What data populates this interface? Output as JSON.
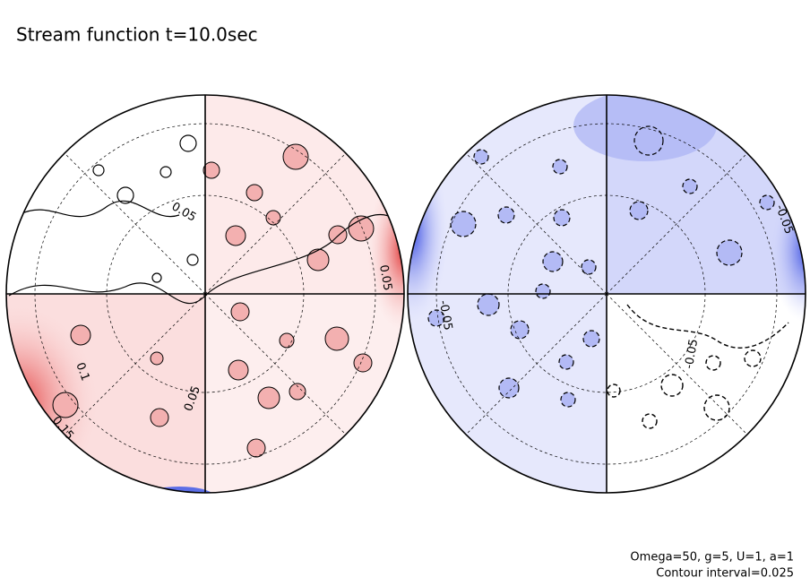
{
  "chart_data": {
    "type": "contour",
    "title": "Stream function t=10.0sec",
    "annotations": [
      "Omega=50, g=5, U=1, a=1",
      "Contour interval=0.025"
    ],
    "positive_color": "#e23b3b",
    "negative_color": "#3b4fe2",
    "contour_labels": [
      0.05,
      0.05,
      0.05,
      0.1,
      0.15,
      -0.05,
      -0.05,
      -0.05
    ]
  }
}
